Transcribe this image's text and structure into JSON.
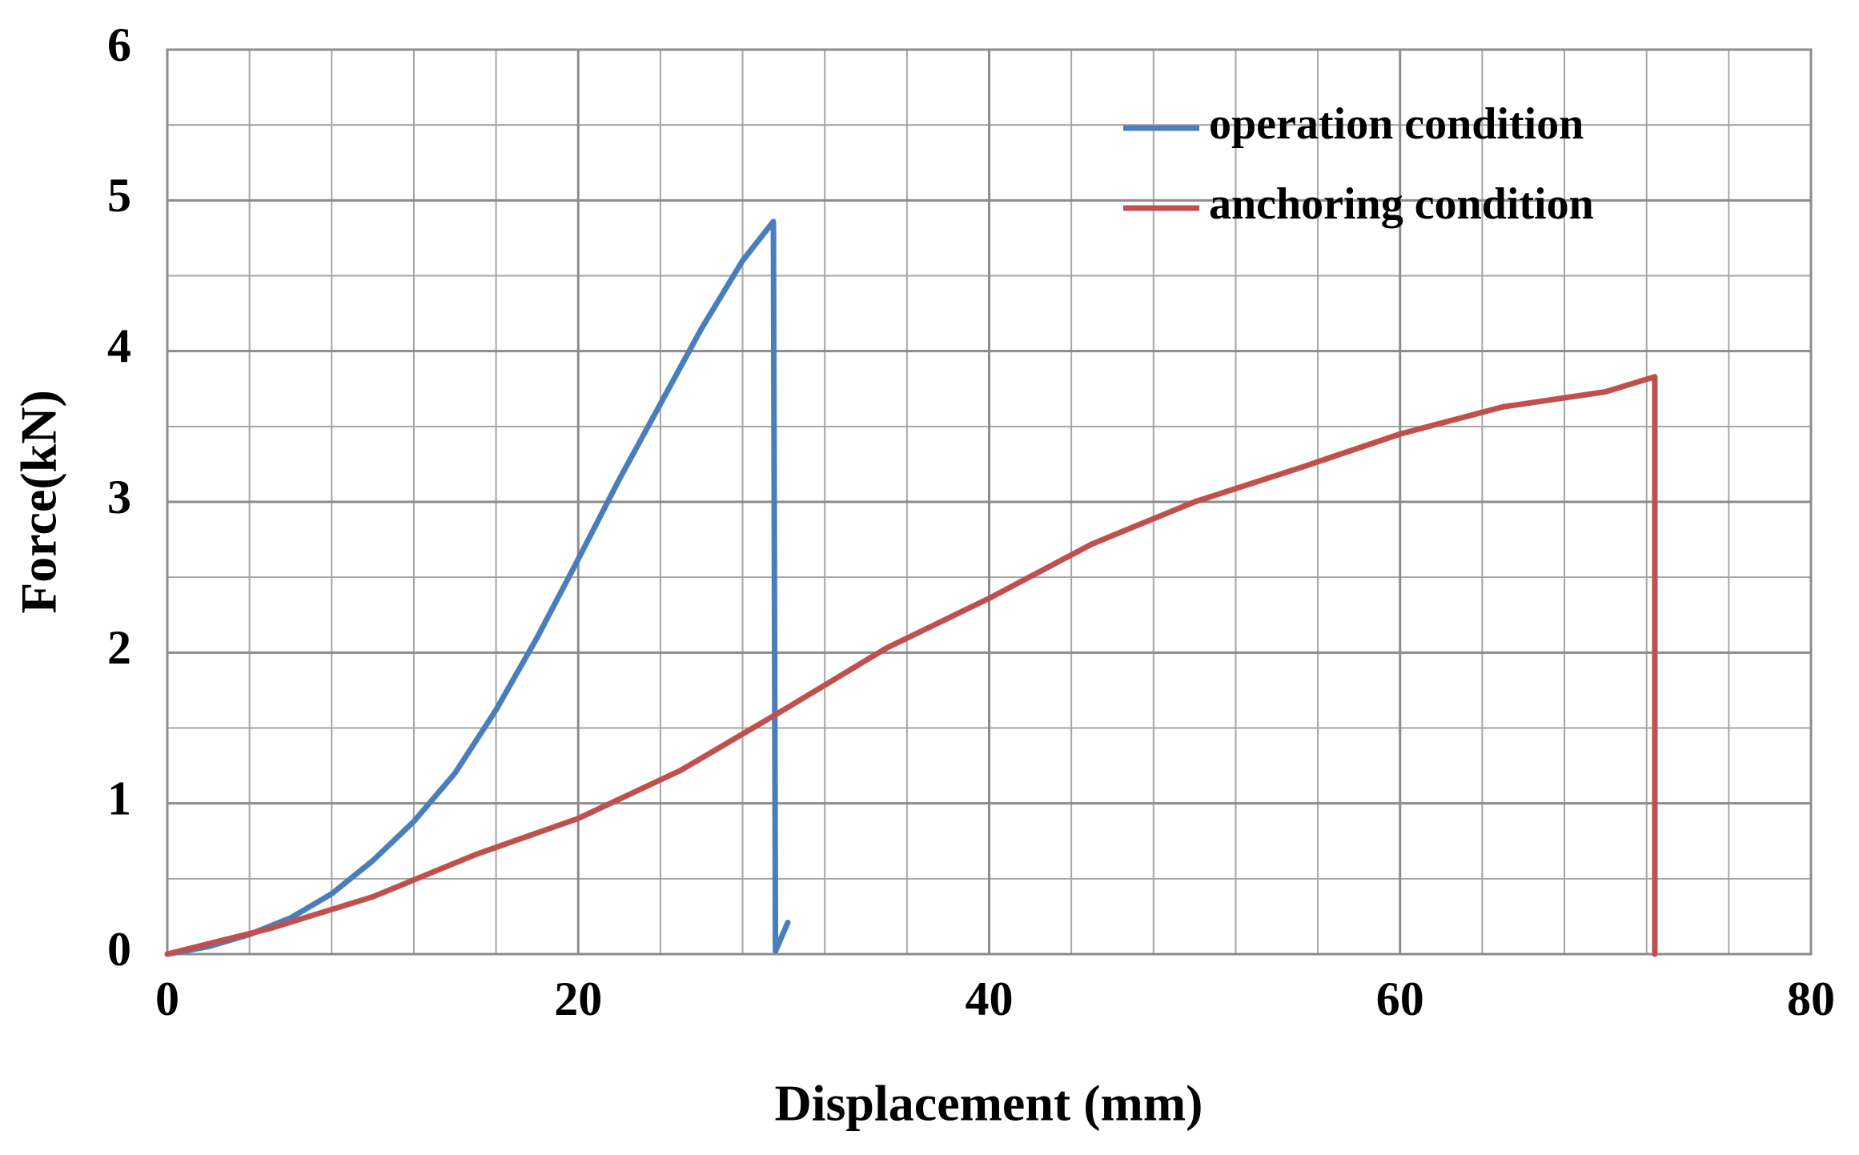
{
  "chart_data": {
    "type": "line",
    "x_label": "Displacement (mm)",
    "y_label": "Force(kN)",
    "xlim": [
      0,
      80
    ],
    "xticks": [
      0,
      20,
      40,
      60,
      80
    ],
    "ylim": [
      0,
      6
    ],
    "yticks": [
      0,
      1,
      2,
      3,
      4,
      5,
      6
    ],
    "grid": true,
    "legend": "upper-right",
    "series": [
      {
        "name": "operation condition",
        "color": "#4a7ebb",
        "x": [
          0,
          2,
          4,
          6,
          8,
          10,
          12,
          14,
          16,
          18,
          20,
          22,
          24,
          26,
          28,
          29.5,
          29.6,
          30.2
        ],
        "values": [
          0,
          0.05,
          0.13,
          0.24,
          0.4,
          0.62,
          0.88,
          1.2,
          1.62,
          2.1,
          2.62,
          3.15,
          3.65,
          4.15,
          4.6,
          4.86,
          0.02,
          0.21
        ]
      },
      {
        "name": "anchoring condition",
        "color": "#c0504d",
        "x": [
          0,
          5,
          10,
          15,
          20,
          25,
          30,
          35,
          40,
          45,
          50,
          55,
          60,
          65,
          70,
          72.4,
          72.4
        ],
        "values": [
          0,
          0.17,
          0.38,
          0.66,
          0.9,
          1.22,
          1.62,
          2.03,
          2.36,
          2.72,
          3.0,
          3.22,
          3.45,
          3.63,
          3.73,
          3.83,
          0
        ]
      }
    ]
  }
}
